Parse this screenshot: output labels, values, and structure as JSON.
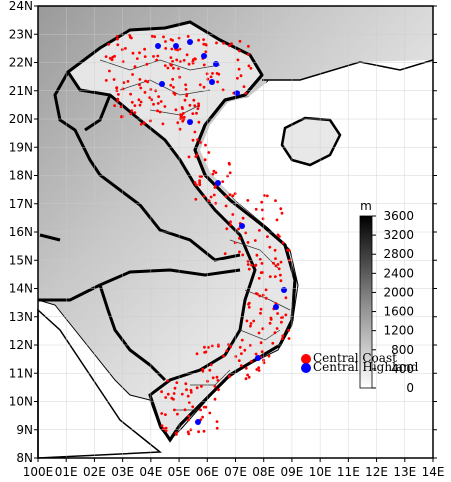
{
  "map": {
    "lat_labels": [
      "24N",
      "23N",
      "22N",
      "21N",
      "20N",
      "19N",
      "18N",
      "17N",
      "16N",
      "15N",
      "14N",
      "13N",
      "12N",
      "11N",
      "10N",
      "9N",
      "8N"
    ],
    "lon_labels": [
      "100E",
      "01E",
      "02E",
      "03E",
      "04E",
      "05E",
      "06E",
      "07E",
      "08E",
      "09E",
      "10E",
      "11E",
      "12E",
      "13E",
      "14E"
    ],
    "colorbar": {
      "unit": "m",
      "ticks": [
        3600,
        3200,
        2800,
        2400,
        2000,
        1600,
        1200,
        800,
        400,
        0
      ]
    },
    "legend": [
      "Central Coast",
      "Central Highland"
    ]
  }
}
